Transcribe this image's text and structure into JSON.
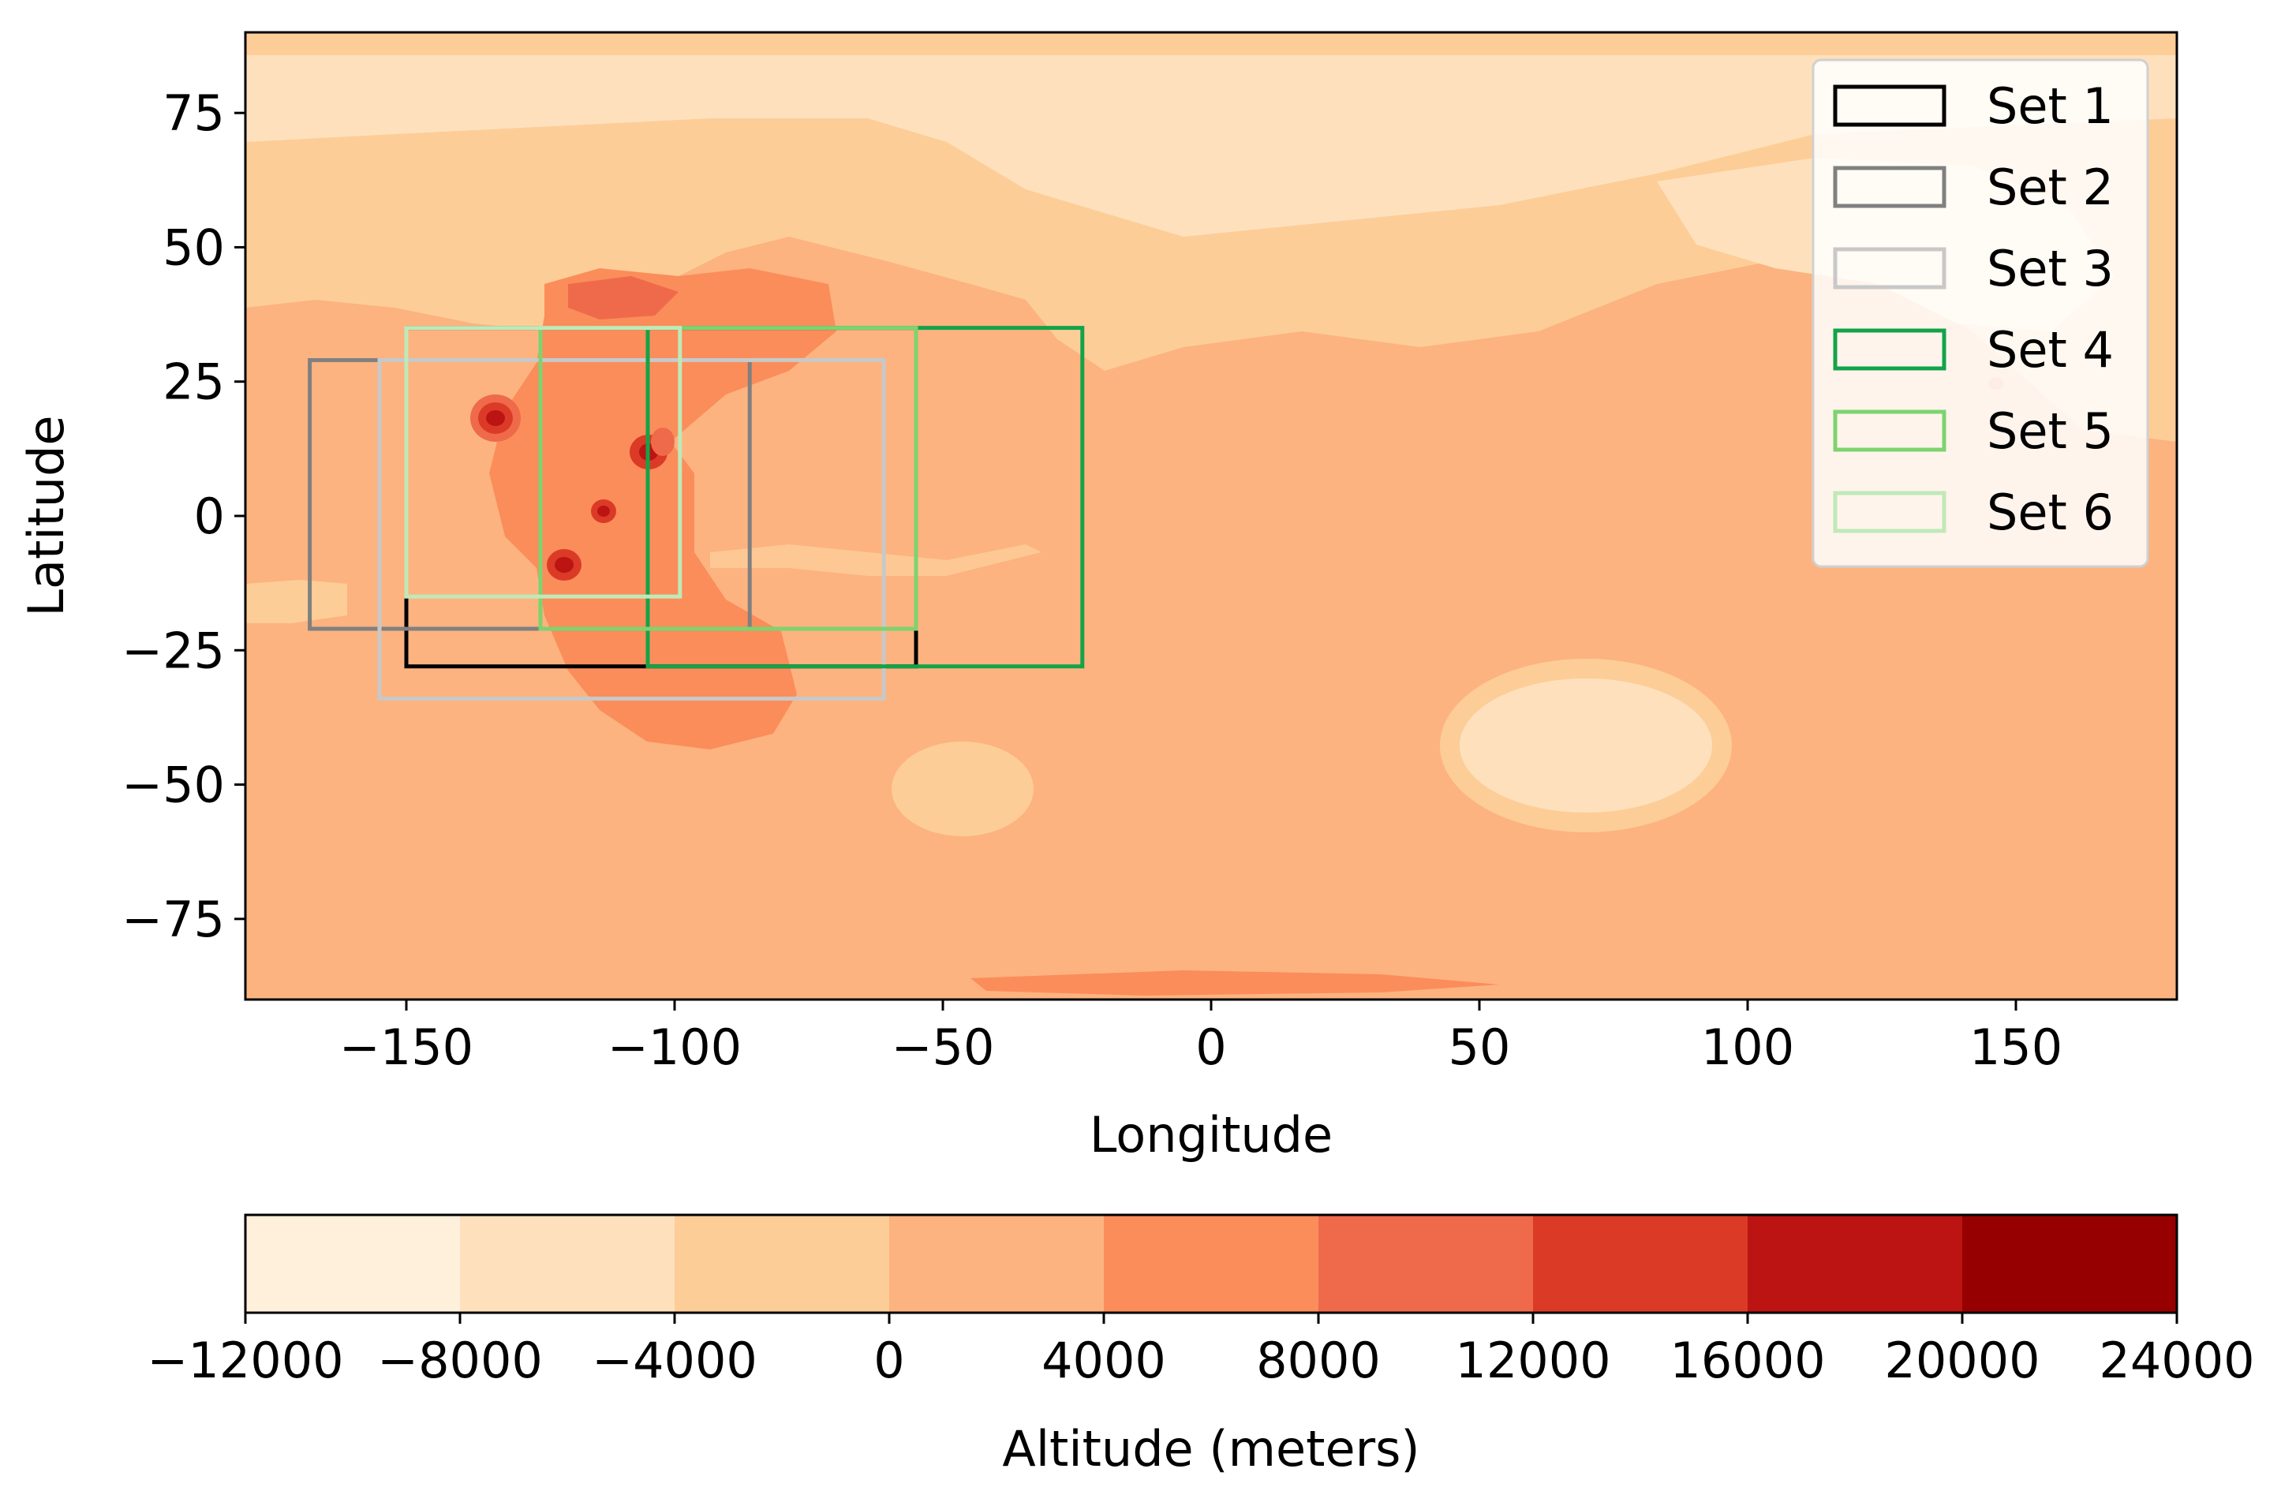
{
  "chart_data": {
    "type": "map",
    "xlabel": "Longitude",
    "ylabel": "Latitude",
    "xlim": [
      -180,
      180
    ],
    "ylim": [
      -90,
      90
    ],
    "xticks": [
      -150,
      -100,
      -50,
      0,
      50,
      100,
      150
    ],
    "xtick_labels": [
      "−150",
      "−100",
      "−50",
      "0",
      "50",
      "100",
      "150"
    ],
    "yticks": [
      75,
      50,
      25,
      0,
      -25,
      -50,
      -75
    ],
    "ytick_labels": [
      "75",
      "50",
      "25",
      "0",
      "−25",
      "−50",
      "−75"
    ],
    "legend_position": "upper right",
    "series": [
      {
        "name": "Set 1",
        "color": "#000000",
        "lon_min": -150,
        "lon_max": -55,
        "lat_min": -28,
        "lat_max": 35
      },
      {
        "name": "Set 2",
        "color": "#808080",
        "lon_min": -168,
        "lon_max": -86,
        "lat_min": -21,
        "lat_max": 29
      },
      {
        "name": "Set 3",
        "color": "#c8c8c8",
        "lon_min": -155,
        "lon_max": -61,
        "lat_min": -34,
        "lat_max": 29
      },
      {
        "name": "Set 4",
        "color": "#13a348",
        "lon_min": -105,
        "lon_max": -24,
        "lat_min": -28,
        "lat_max": 35
      },
      {
        "name": "Set 5",
        "color": "#7dd36f",
        "lon_min": -125,
        "lon_max": -55,
        "lat_min": -21,
        "lat_max": 35
      },
      {
        "name": "Set 6",
        "color": "#bfe9b8",
        "lon_min": -150,
        "lon_max": -99,
        "lat_min": -15,
        "lat_max": 35
      }
    ],
    "colorbar": {
      "label": "Altitude (meters)",
      "levels": [
        -12000,
        -8000,
        -4000,
        0,
        4000,
        8000,
        12000,
        16000,
        20000,
        24000
      ],
      "level_labels": [
        "−12000",
        "−8000",
        "−4000",
        "0",
        "4000",
        "8000",
        "12000",
        "16000",
        "20000",
        "24000"
      ],
      "colors": [
        "#fff0dc",
        "#fee1bc",
        "#fdcd98",
        "#fcb380",
        "#fb8d5a",
        "#ef6a4b",
        "#db3b26",
        "#bc1313",
        "#970000"
      ]
    }
  }
}
